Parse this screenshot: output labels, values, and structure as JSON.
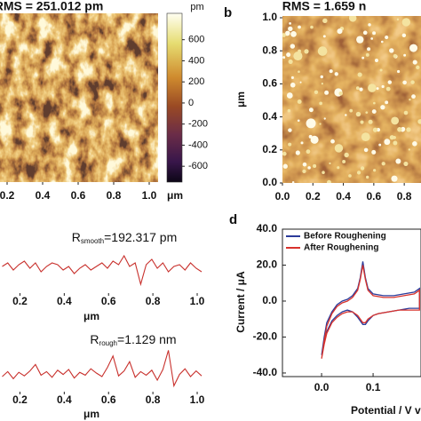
{
  "chart_data": [
    {
      "type": "image",
      "title": "RMS = 251.012 pm",
      "xlim": [
        0.16,
        1.05
      ],
      "xticks": [
        0.2,
        0.4,
        0.6,
        0.8,
        {
          "value": 1.0,
          "label": "1.0"
        }
      ],
      "xlabel": "μm",
      "colorbar": {
        "label": "pm",
        "lim": [
          -750,
          850
        ],
        "ticks": [
          600,
          400,
          200,
          0,
          -200,
          -400,
          -600
        ]
      }
    },
    {
      "type": "image",
      "label": "b",
      "title": "RMS = 1.659 n",
      "xlim": [
        0,
        0.91
      ],
      "xticks": [
        {
          "value": 0,
          "label": "0.0"
        },
        0.2,
        0.4,
        0.6,
        0.8
      ],
      "ylim": [
        0,
        1.0
      ],
      "yticks": [
        {
          "value": 0,
          "label": "0.0"
        },
        0.2,
        0.4,
        0.6,
        0.8,
        {
          "value": 1.0,
          "label": "1.0"
        }
      ],
      "ylabel": "μm"
    },
    {
      "type": "line",
      "title": {
        "main": "R",
        "sub": "smooth",
        "rest": "=192.317 pm"
      },
      "color": "#c8302c",
      "xlim": [
        0.11,
        1.04
      ],
      "xticks": [
        0.2,
        0.4,
        0.6,
        0.8,
        {
          "value": 1.0,
          "label": "1.0"
        }
      ],
      "xlabel": "μm",
      "ylim": [
        -1.2,
        1.2
      ],
      "x": [
        0.12,
        0.145,
        0.17,
        0.195,
        0.22,
        0.245,
        0.27,
        0.295,
        0.32,
        0.345,
        0.37,
        0.395,
        0.42,
        0.445,
        0.47,
        0.495,
        0.52,
        0.545,
        0.57,
        0.595,
        0.62,
        0.645,
        0.67,
        0.695,
        0.72,
        0.745,
        0.77,
        0.795,
        0.82,
        0.845,
        0.87,
        0.895,
        0.92,
        0.945,
        0.97,
        0.995,
        1.02
      ],
      "values": [
        0.1,
        0.3,
        -0.1,
        0.2,
        0.4,
        0.0,
        0.3,
        -0.2,
        0.1,
        0.3,
        0.2,
        -0.1,
        0.1,
        -0.3,
        0.0,
        0.2,
        -0.1,
        0.1,
        0.3,
        0.0,
        0.4,
        0.2,
        0.7,
        0.1,
        0.3,
        -0.9,
        0.2,
        0.5,
        0.0,
        0.3,
        -0.2,
        0.1,
        0.2,
        -0.1,
        0.3,
        0.0,
        -0.2
      ]
    },
    {
      "type": "line",
      "title": {
        "main": "R",
        "sub": "rough",
        "rest": "=1.129 nm"
      },
      "color": "#c8302c",
      "xlim": [
        0.11,
        1.04
      ],
      "xticks": [
        0.2,
        0.4,
        0.6,
        0.8,
        {
          "value": 1.0,
          "label": "1.0"
        }
      ],
      "xlabel": "μm",
      "ylim": [
        -2.5,
        3.5
      ],
      "x": [
        0.12,
        0.145,
        0.17,
        0.195,
        0.22,
        0.245,
        0.27,
        0.295,
        0.32,
        0.345,
        0.37,
        0.395,
        0.42,
        0.445,
        0.47,
        0.495,
        0.52,
        0.545,
        0.57,
        0.595,
        0.62,
        0.645,
        0.67,
        0.695,
        0.72,
        0.745,
        0.77,
        0.795,
        0.82,
        0.845,
        0.87,
        0.895,
        0.92,
        0.945,
        0.97,
        0.995,
        1.02
      ],
      "values": [
        -0.5,
        0.2,
        -0.8,
        0.1,
        -0.4,
        0.3,
        1.2,
        -0.3,
        0.2,
        -0.6,
        0.4,
        -0.2,
        0.5,
        -0.7,
        0.1,
        -0.3,
        0.6,
        0.0,
        -0.5,
        0.8,
        2.4,
        -0.4,
        0.3,
        1.6,
        -0.6,
        0.2,
        -0.3,
        0.4,
        -1.0,
        0.5,
        3.2,
        -1.8,
        -0.2,
        0.6,
        -0.5,
        0.3,
        -0.4
      ]
    },
    {
      "type": "cv",
      "label": "d",
      "xlabel": "Potential / V vs.",
      "ylabel": "Current / μA",
      "xlim": [
        -0.076,
        0.193
      ],
      "xticks": [
        {
          "value": 0,
          "label": "0.0"
        },
        0.1
      ],
      "ylim": [
        -42,
        40
      ],
      "yticks": [
        {
          "value": 40,
          "label": "40.0"
        },
        {
          "value": 20,
          "label": "20.0"
        },
        {
          "value": 0,
          "label": "0.0"
        },
        {
          "value": -20,
          "label": "-20.0"
        },
        {
          "value": -40,
          "label": "-40.0"
        }
      ],
      "x": [
        0,
        0.005,
        0.01,
        0.02,
        0.03,
        0.04,
        0.05,
        0.06,
        0.07,
        0.075,
        0.08,
        0.085,
        0.09,
        0.1,
        0.12,
        0.14,
        0.16,
        0.18,
        0.19,
        0.19,
        0.17,
        0.15,
        0.13,
        0.11,
        0.1,
        0.09,
        0.085,
        0.08,
        0.075,
        0.07,
        0.06,
        0.05,
        0.04,
        0.03,
        0.02,
        0.01,
        0.005,
        0
      ],
      "series": [
        {
          "name": "Before Roughening",
          "color": "#2b3b9a",
          "values": [
            -30,
            -20,
            -12,
            -6,
            -2,
            0,
            1,
            3,
            7,
            13,
            22,
            13,
            7,
            4,
            3,
            3,
            4,
            5,
            7,
            -4,
            -4,
            -5,
            -6,
            -7,
            -8,
            -11,
            -13,
            -13,
            -11,
            -9,
            -6,
            -5,
            -6,
            -8,
            -11,
            -17,
            -23,
            -30
          ]
        },
        {
          "name": "After Roughening",
          "color": "#d8322c",
          "values": [
            -32,
            -22,
            -14,
            -7,
            -3,
            -1,
            0,
            2,
            6,
            12,
            20,
            12,
            6,
            3,
            2,
            2,
            3,
            4,
            6,
            -5,
            -5,
            -5,
            -6,
            -7,
            -8,
            -10,
            -12,
            -12,
            -10,
            -8,
            -6,
            -6,
            -7,
            -9,
            -12,
            -18,
            -24,
            -32
          ]
        }
      ]
    }
  ]
}
